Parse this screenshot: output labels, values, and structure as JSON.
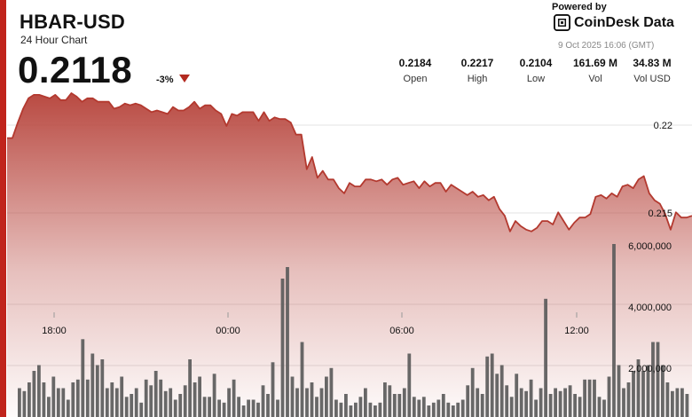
{
  "header": {
    "symbol": "HBAR-USD",
    "subtitle": "24 Hour Chart",
    "price": "0.2118",
    "change_pct": "-3%"
  },
  "branding": {
    "powered_by": "Powered by",
    "name": "CoinDesk Data",
    "datetime": "9 Oct 2025 16:06 (GMT)",
    "logo_icon": "coindesk-logo-icon"
  },
  "stats": [
    {
      "value": "0.2184",
      "label": "Open"
    },
    {
      "value": "0.2217",
      "label": "High"
    },
    {
      "value": "0.2104",
      "label": "Low"
    },
    {
      "value": "161.69 M",
      "label": "Vol"
    },
    {
      "value": "34.83 M",
      "label": "Vol USD"
    }
  ],
  "colors": {
    "accent": "#c0241c",
    "line": "#b3392f",
    "area_top": "#b94a42",
    "bar": "#5b5b5b"
  },
  "chart_data": {
    "type": "line",
    "x_tick_labels": [
      "18:00",
      "00:00",
      "06:00",
      "12:00"
    ],
    "price_ticks": [
      "0.22",
      "0.215"
    ],
    "volume_ticks": [
      "6,000,000",
      "4,000,000",
      "2,000,000"
    ],
    "price_range": [
      0.2104,
      0.2217
    ],
    "volume_range": [
      0,
      8000000
    ],
    "price_series": [
      0.2191,
      0.2191,
      0.22,
      0.2208,
      0.2214,
      0.2216,
      0.2216,
      0.2215,
      0.2214,
      0.2216,
      0.2213,
      0.2213,
      0.2217,
      0.2215,
      0.2212,
      0.2214,
      0.2214,
      0.2212,
      0.2212,
      0.2212,
      0.2208,
      0.2209,
      0.2211,
      0.221,
      0.2211,
      0.221,
      0.2208,
      0.2206,
      0.2207,
      0.2206,
      0.2205,
      0.2209,
      0.2207,
      0.2207,
      0.2209,
      0.2212,
      0.2208,
      0.221,
      0.221,
      0.2207,
      0.2205,
      0.2198,
      0.2205,
      0.2204,
      0.2206,
      0.2206,
      0.2206,
      0.2201,
      0.2206,
      0.2201,
      0.2203,
      0.2202,
      0.2202,
      0.22,
      0.2193,
      0.2193,
      0.2173,
      0.218,
      0.2168,
      0.2172,
      0.2167,
      0.2167,
      0.2162,
      0.2159,
      0.2165,
      0.2163,
      0.2163,
      0.2167,
      0.2167,
      0.2166,
      0.2167,
      0.2164,
      0.2167,
      0.2168,
      0.2164,
      0.2165,
      0.2166,
      0.2162,
      0.2166,
      0.2163,
      0.2165,
      0.2165,
      0.216,
      0.2164,
      0.2162,
      0.216,
      0.2158,
      0.216,
      0.2157,
      0.2158,
      0.2155,
      0.2157,
      0.215,
      0.2146,
      0.2137,
      0.2143,
      0.214,
      0.2138,
      0.2137,
      0.2139,
      0.2143,
      0.2143,
      0.2141,
      0.2148,
      0.2143,
      0.2138,
      0.2142,
      0.2145,
      0.2145,
      0.2147,
      0.2157,
      0.2158,
      0.2156,
      0.2159,
      0.2157,
      0.2163,
      0.2164,
      0.2162,
      0.2167,
      0.2169,
      0.2159,
      0.2155,
      0.2153,
      0.2147,
      0.2138,
      0.2148,
      0.2145,
      0.2145,
      0.2146
    ],
    "volume_bars": [
      1000000,
      900000,
      1200000,
      1600000,
      1800000,
      1200000,
      700000,
      1400000,
      1000000,
      1000000,
      600000,
      1200000,
      1300000,
      2700000,
      1300000,
      2200000,
      1800000,
      2000000,
      1000000,
      1200000,
      1000000,
      1400000,
      700000,
      800000,
      1000000,
      500000,
      1300000,
      1100000,
      1600000,
      1300000,
      900000,
      1000000,
      600000,
      800000,
      1100000,
      2000000,
      1200000,
      1400000,
      700000,
      700000,
      1500000,
      600000,
      500000,
      1000000,
      1300000,
      700000,
      400000,
      600000,
      600000,
      500000,
      1100000,
      800000,
      1900000,
      600000,
      4800000,
      5200000,
      1400000,
      1000000,
      2600000,
      1000000,
      1200000,
      700000,
      1000000,
      1400000,
      1700000,
      600000,
      500000,
      800000,
      400000,
      500000,
      700000,
      1000000,
      500000,
      400000,
      500000,
      1200000,
      1100000,
      800000,
      800000,
      1000000,
      2200000,
      700000,
      600000,
      700000,
      400000,
      500000,
      600000,
      800000,
      500000,
      400000,
      500000,
      600000,
      1100000,
      1700000,
      1000000,
      800000,
      2100000,
      2200000,
      1500000,
      1800000,
      1100000,
      700000,
      1500000,
      1000000,
      900000,
      1300000,
      600000,
      1000000,
      4100000,
      800000,
      1000000,
      900000,
      1000000,
      1100000,
      800000,
      700000,
      1300000,
      1300000,
      1300000,
      700000,
      600000,
      1400000,
      6000000,
      1800000,
      1000000,
      1200000,
      1600000,
      2000000,
      1600000,
      1800000,
      2600000,
      2600000,
      1800000,
      1200000,
      900000,
      1000000,
      1000000,
      800000
    ]
  }
}
